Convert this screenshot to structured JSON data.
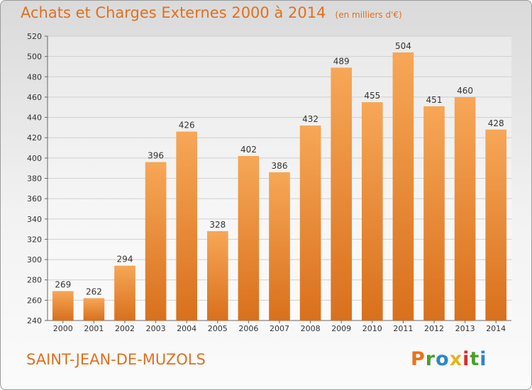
{
  "title": "Achats et Charges Externes 2000 à 2014",
  "unit": "(en milliers d'€)",
  "location": "SAINT-JEAN-DE-MUZOLS",
  "brand": {
    "text": "Proxiti",
    "letter_colors": [
      "#e8731a",
      "#4a9e2f",
      "#2a86c9",
      "#e8b51a",
      "#d92b2b",
      "#4a9e2f",
      "#2a86c9"
    ]
  },
  "colors": {
    "accent": "#e07020",
    "bar_top": "#f6a757",
    "bar_bottom": "#d9701c",
    "grid": "#cfcfcf"
  },
  "chart_data": {
    "type": "bar",
    "categories": [
      "2000",
      "2001",
      "2002",
      "2003",
      "2004",
      "2005",
      "2006",
      "2007",
      "2008",
      "2009",
      "2010",
      "2011",
      "2012",
      "2013",
      "2014"
    ],
    "values": [
      269,
      262,
      294,
      396,
      426,
      328,
      402,
      386,
      432,
      489,
      455,
      504,
      451,
      460,
      428
    ],
    "ylim": [
      240,
      520
    ],
    "yticks": [
      240,
      260,
      280,
      300,
      320,
      340,
      360,
      380,
      400,
      420,
      440,
      460,
      480,
      500,
      520
    ],
    "grid": true
  }
}
